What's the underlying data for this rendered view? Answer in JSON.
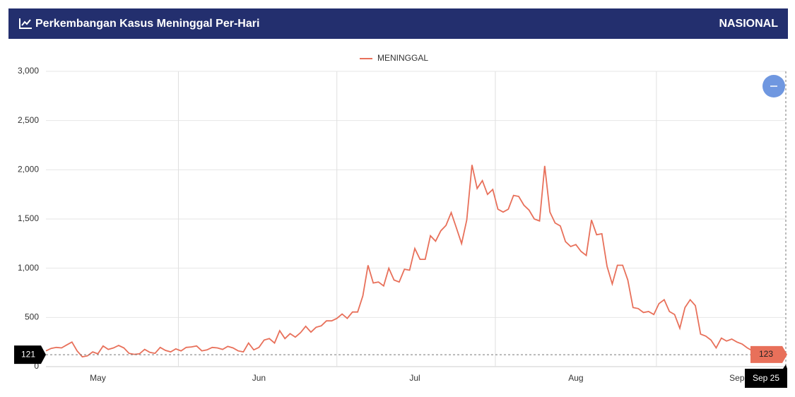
{
  "header": {
    "title": "Perkembangan Kasus Meninggal Per-Hari",
    "badge": "NASIONAL"
  },
  "chart_data": {
    "type": "line",
    "categories": [
      null,
      null,
      null,
      null,
      null,
      null,
      null,
      null,
      null,
      null,
      "May",
      null,
      null,
      null,
      null,
      null,
      null,
      null,
      null,
      null,
      null,
      null,
      null,
      null,
      null,
      null,
      null,
      null,
      null,
      null,
      null,
      null,
      null,
      null,
      null,
      null,
      null,
      null,
      null,
      null,
      null,
      "Jun",
      null,
      null,
      null,
      null,
      null,
      null,
      null,
      null,
      null,
      null,
      null,
      null,
      null,
      null,
      null,
      null,
      null,
      null,
      null,
      null,
      null,
      null,
      null,
      null,
      null,
      null,
      null,
      null,
      null,
      "Jul",
      null,
      null,
      null,
      null,
      null,
      null,
      null,
      null,
      null,
      null,
      null,
      null,
      null,
      null,
      null,
      null,
      null,
      null,
      null,
      null,
      null,
      null,
      null,
      null,
      null,
      null,
      null,
      null,
      null,
      null,
      "Aug",
      null,
      null,
      null,
      null,
      null,
      null,
      null,
      null,
      null,
      null,
      null,
      null,
      null,
      null,
      null,
      null,
      null,
      null,
      null,
      null,
      null,
      null,
      null,
      null,
      null,
      null,
      null,
      null,
      null,
      null,
      "Sep",
      null,
      null,
      null,
      null,
      null,
      null,
      null,
      null,
      "Sep 25"
    ],
    "series": [
      {
        "name": "MENINGGAL",
        "color": "#e8705a",
        "values": [
          160,
          185,
          195,
          190,
          220,
          250,
          160,
          100,
          110,
          150,
          130,
          210,
          175,
          190,
          215,
          190,
          135,
          125,
          130,
          175,
          145,
          135,
          195,
          165,
          150,
          180,
          160,
          195,
          200,
          210,
          160,
          170,
          195,
          190,
          175,
          205,
          190,
          160,
          150,
          240,
          170,
          195,
          270,
          285,
          240,
          365,
          285,
          335,
          300,
          345,
          410,
          350,
          400,
          415,
          465,
          465,
          490,
          535,
          490,
          555,
          555,
          720,
          1030,
          850,
          860,
          820,
          1000,
          880,
          860,
          990,
          980,
          1200,
          1090,
          1090,
          1330,
          1275,
          1380,
          1435,
          1565,
          1410,
          1250,
          1490,
          2050,
          1810,
          1890,
          1750,
          1800,
          1600,
          1570,
          1600,
          1740,
          1730,
          1640,
          1590,
          1500,
          1480,
          2040,
          1570,
          1460,
          1430,
          1270,
          1220,
          1240,
          1170,
          1130,
          1490,
          1340,
          1350,
          1020,
          840,
          1030,
          1030,
          880,
          600,
          590,
          550,
          560,
          530,
          640,
          680,
          560,
          530,
          390,
          600,
          680,
          620,
          330,
          310,
          270,
          190,
          290,
          260,
          280,
          250,
          230,
          190,
          160,
          150,
          140,
          130,
          125,
          121,
          123
        ]
      }
    ],
    "ylim": [
      0,
      3000
    ],
    "yticks": [
      0,
      500,
      {
        "value": 1000,
        "label": "1,000"
      },
      {
        "value": 1500,
        "label": "1,500"
      },
      {
        "value": 2000,
        "label": "2,000"
      },
      {
        "value": 2500,
        "label": "2,500"
      },
      {
        "value": 3000,
        "label": "3,000"
      }
    ],
    "y_pointer": 121,
    "grid": true
  }
}
